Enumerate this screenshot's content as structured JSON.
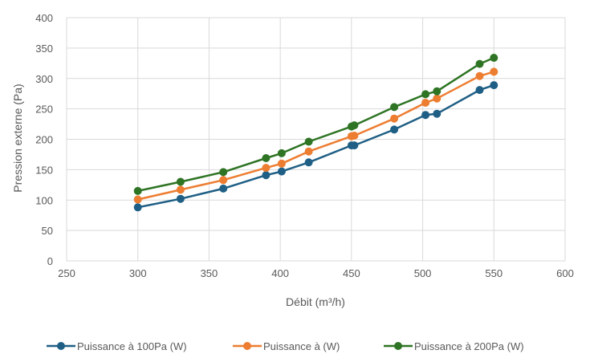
{
  "chart_data": {
    "type": "line",
    "title": "",
    "xlabel": "Débit (m³/h)",
    "ylabel": "Pression externe (Pa)",
    "xlim": [
      250,
      600
    ],
    "ylim": [
      0,
      400
    ],
    "xticks": [
      250,
      300,
      350,
      400,
      450,
      500,
      550,
      600
    ],
    "yticks": [
      0,
      50,
      100,
      150,
      200,
      250,
      300,
      350,
      400
    ],
    "grid": true,
    "legend_position": "bottom",
    "series": [
      {
        "name": "Puissance à 100Pa (W)",
        "color": "#1f5f85",
        "points": [
          [
            300,
            88
          ],
          [
            330,
            102
          ],
          [
            360,
            119
          ],
          [
            390,
            141
          ],
          [
            401,
            147
          ],
          [
            420,
            162
          ],
          [
            450,
            190
          ],
          [
            452,
            190
          ],
          [
            480,
            216
          ],
          [
            502,
            240
          ],
          [
            510,
            242
          ],
          [
            540,
            281
          ],
          [
            550,
            289
          ]
        ]
      },
      {
        "name": "Puissance à (W)",
        "color": "#ed7d31",
        "points": [
          [
            300,
            101
          ],
          [
            330,
            117
          ],
          [
            360,
            133
          ],
          [
            390,
            153
          ],
          [
            401,
            160
          ],
          [
            420,
            180
          ],
          [
            450,
            205
          ],
          [
            452,
            206
          ],
          [
            480,
            234
          ],
          [
            502,
            260
          ],
          [
            510,
            267
          ],
          [
            540,
            304
          ],
          [
            550,
            311
          ]
        ]
      },
      {
        "name": "Puissance à 200Pa (W)",
        "color": "#2e7424",
        "points": [
          [
            300,
            115
          ],
          [
            330,
            130
          ],
          [
            360,
            146
          ],
          [
            390,
            169
          ],
          [
            401,
            177
          ],
          [
            420,
            196
          ],
          [
            450,
            221
          ],
          [
            452,
            223
          ],
          [
            480,
            253
          ],
          [
            502,
            274
          ],
          [
            510,
            279
          ],
          [
            540,
            324
          ],
          [
            550,
            334
          ]
        ]
      }
    ]
  }
}
